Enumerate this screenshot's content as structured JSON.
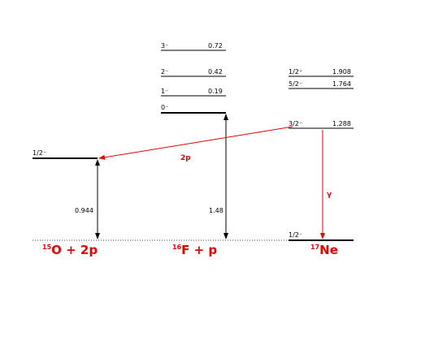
{
  "levels_15O": [
    {
      "spin": "1/2⁻"
    }
  ],
  "levels_16F": [
    {
      "spin": "3⁻",
      "energy": "0.72"
    },
    {
      "spin": "2⁻",
      "energy": "0.42"
    },
    {
      "spin": "1⁻",
      "energy": "0.19"
    },
    {
      "spin": "0⁻"
    }
  ],
  "levels_17Ne": [
    {
      "spin": "1/2⁺",
      "energy": "1.908"
    },
    {
      "spin": "5/2⁻",
      "energy": "1.764"
    },
    {
      "spin": "3/2⁻",
      "energy": "1.288"
    },
    {
      "spin": "1/2⁻"
    }
  ],
  "gaps": [
    "0.944",
    "1.48"
  ],
  "transitions": [
    "2p",
    "γ"
  ],
  "nuclei": [
    {
      "mass": "15",
      "label": "O + 2p"
    },
    {
      "mass": "16",
      "label": "F + p"
    },
    {
      "mass": "17",
      "label": "Ne"
    }
  ]
}
